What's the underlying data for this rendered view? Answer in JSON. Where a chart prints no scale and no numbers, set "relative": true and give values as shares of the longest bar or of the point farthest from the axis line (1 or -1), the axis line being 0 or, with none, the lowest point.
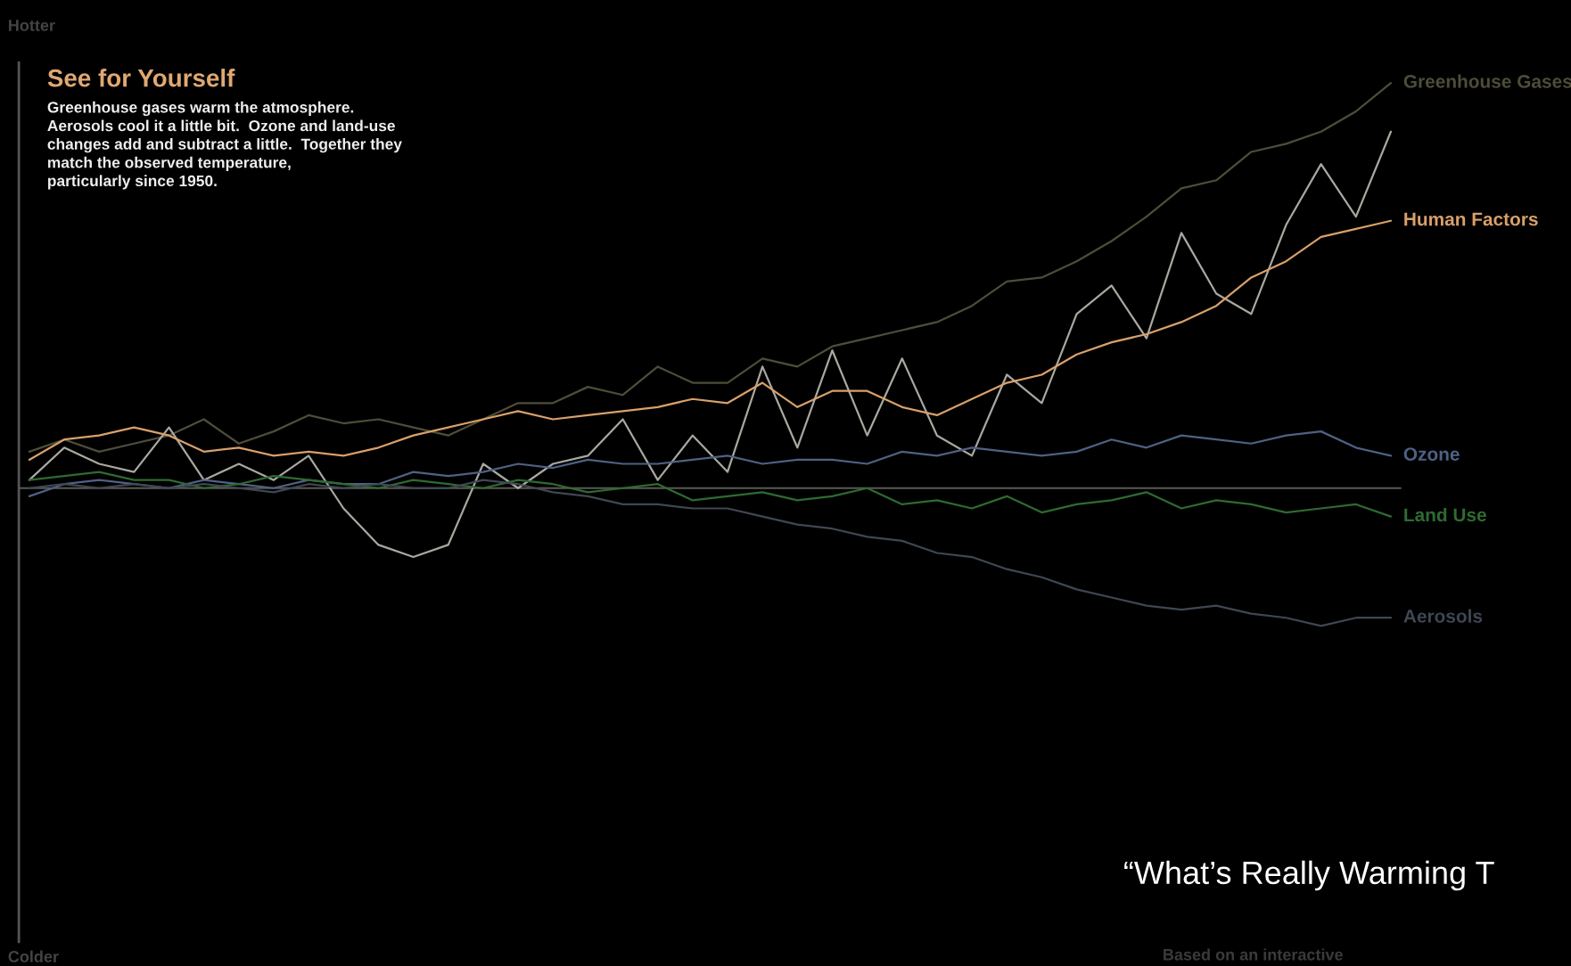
{
  "chart_data": {
    "type": "line",
    "relative": true,
    "title": "See for Yourself",
    "subtitle": "Greenhouse gases warm the atmosphere.\nAerosols cool it a little bit.  Ozone and land-use\nchanges add and subtract a little.  Together they\nmatch the observed temperature,\nparticularly since 1950.",
    "annotations": [
      "Hotter",
      "Colder",
      "“What’s Really Warming T",
      "Based on an interactive"
    ],
    "categories": [
      null,
      null,
      null,
      null,
      null,
      null,
      null,
      null,
      null,
      null,
      null,
      null,
      null,
      null,
      null,
      null,
      null,
      null,
      null,
      null,
      null,
      null,
      null,
      null,
      null,
      null,
      null,
      null,
      null,
      null,
      null,
      null,
      null,
      null,
      null,
      null,
      null,
      null,
      null,
      null
    ],
    "legend": false,
    "grid": false,
    "series": [
      {
        "name": "Greenhouse Gases",
        "color": "#4e4d3a",
        "values": [
          0.09,
          0.12,
          0.09,
          0.11,
          0.13,
          0.17,
          0.11,
          0.14,
          0.18,
          0.16,
          0.17,
          0.15,
          0.13,
          0.17,
          0.21,
          0.21,
          0.25,
          0.23,
          0.3,
          0.26,
          0.26,
          0.32,
          0.3,
          0.35,
          0.37,
          0.39,
          0.41,
          0.45,
          0.51,
          0.52,
          0.56,
          0.61,
          0.67,
          0.74,
          0.76,
          0.83,
          0.85,
          0.88,
          0.93,
          1
        ]
      },
      {
        "color": "#a9a8a0",
        "values": [
          0.02,
          0.1,
          0.06,
          0.04,
          0.15,
          0.02,
          0.06,
          0.02,
          0.08,
          -0.05,
          -0.14,
          -0.17,
          -0.14,
          0.06,
          0,
          0.06,
          0.08,
          0.17,
          0.02,
          0.13,
          0.04,
          0.3,
          0.1,
          0.34,
          0.13,
          0.32,
          0.13,
          0.08,
          0.28,
          0.21,
          0.43,
          0.5,
          0.37,
          0.63,
          0.48,
          0.43,
          0.65,
          0.8,
          0.67,
          0.88
        ]
      },
      {
        "name": "Human Factors",
        "color": "#d9a06a",
        "values": [
          0.07,
          0.12,
          0.13,
          0.15,
          0.13,
          0.09,
          0.1,
          0.08,
          0.09,
          0.08,
          0.1,
          0.13,
          0.15,
          0.17,
          0.19,
          0.17,
          0.18,
          0.19,
          0.2,
          0.22,
          0.21,
          0.26,
          0.2,
          0.24,
          0.24,
          0.2,
          0.18,
          0.22,
          0.26,
          0.28,
          0.33,
          0.36,
          0.38,
          0.41,
          0.45,
          0.52,
          0.56,
          0.62,
          0.64,
          0.66
        ]
      },
      {
        "name": "Ozone",
        "color": "#4f6184",
        "values": [
          -0.02,
          0.01,
          0.02,
          0.01,
          0.0,
          0.02,
          0.01,
          0.0,
          0.02,
          0.01,
          0.01,
          0.04,
          0.03,
          0.04,
          0.06,
          0.05,
          0.07,
          0.06,
          0.06,
          0.07,
          0.08,
          0.06,
          0.07,
          0.07,
          0.06,
          0.09,
          0.08,
          0.1,
          0.09,
          0.08,
          0.09,
          0.12,
          0.1,
          0.13,
          0.12,
          0.11,
          0.13,
          0.14,
          0.1,
          0.08
        ]
      },
      {
        "name": "Land Use",
        "color": "#2f6a32",
        "values": [
          0.02,
          0.03,
          0.04,
          0.02,
          0.02,
          0.0,
          0.01,
          0.03,
          0.02,
          0.01,
          0.0,
          0.02,
          0.01,
          0.0,
          0.02,
          0.01,
          -0.01,
          0.0,
          0.01,
          -0.03,
          -0.02,
          -0.01,
          -0.03,
          -0.02,
          0.0,
          -0.04,
          -0.03,
          -0.05,
          -0.02,
          -0.06,
          -0.04,
          -0.03,
          -0.01,
          -0.05,
          -0.03,
          -0.04,
          -0.06,
          -0.05,
          -0.04,
          -0.07
        ]
      },
      {
        "name": "Aerosols",
        "color": "#3f4753",
        "values": [
          0.0,
          0.01,
          0.0,
          0.01,
          0.0,
          0.01,
          0.0,
          -0.01,
          0.01,
          0.0,
          0.01,
          0.0,
          0.0,
          0.02,
          0.01,
          -0.01,
          -0.02,
          -0.04,
          -0.04,
          -0.05,
          -0.05,
          -0.07,
          -0.09,
          -0.1,
          -0.12,
          -0.13,
          -0.16,
          -0.17,
          -0.2,
          -0.22,
          -0.25,
          -0.27,
          -0.29,
          -0.3,
          -0.29,
          -0.31,
          -0.32,
          -0.34,
          -0.32,
          -0.32
        ]
      }
    ]
  }
}
